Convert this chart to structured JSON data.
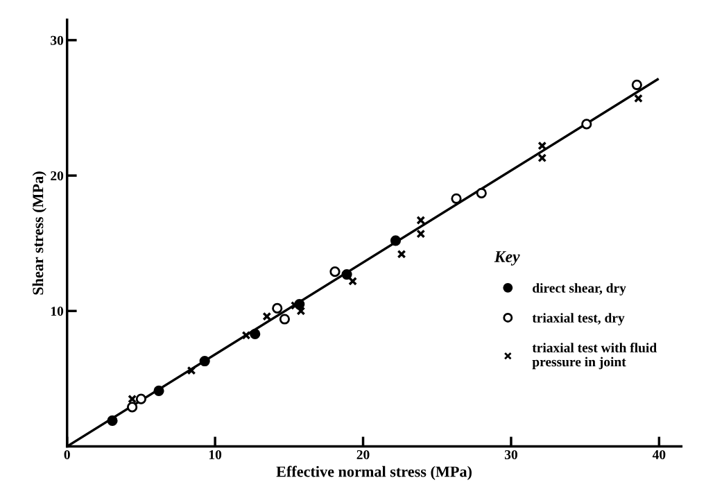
{
  "chart_data": {
    "type": "scatter",
    "xlabel": "Effective normal stress (MPa)",
    "ylabel": "Shear stress (MPa)",
    "legend_title": "Key",
    "legend": "right",
    "xlim": [
      0,
      41.5
    ],
    "ylim": [
      0,
      31.5
    ],
    "xticks": [
      0,
      10,
      20,
      30,
      40
    ],
    "yticks": [
      10,
      20,
      30
    ],
    "grid": false,
    "series": [
      {
        "name": "direct shear, dry",
        "color": "#000000",
        "marker": "circle",
        "x": [
          3.06,
          6.2,
          9.3,
          12.7,
          15.7,
          18.9,
          22.2
        ],
        "values": [
          1.9,
          4.1,
          6.3,
          8.3,
          10.5,
          12.7,
          15.2
        ]
      },
      {
        "name": "triaxial test, dry",
        "color": "#ffffff",
        "marker": "circle",
        "x": [
          4.4,
          5.0,
          14.2,
          14.7,
          18.1,
          26.3,
          28.0,
          35.1,
          38.5
        ],
        "values": [
          2.9,
          3.5,
          10.2,
          9.4,
          12.9,
          18.3,
          18.7,
          23.8,
          26.7
        ]
      },
      {
        "name": "triaxial test with fluid\npressure in joint",
        "color": "#000000",
        "marker": "cross",
        "x": [
          4.4,
          8.4,
          12.1,
          13.5,
          15.4,
          15.8,
          19.3,
          22.6,
          23.9,
          23.9,
          32.1,
          32.1,
          38.6
        ],
        "values": [
          3.5,
          5.6,
          8.2,
          9.6,
          10.4,
          10.0,
          12.2,
          14.2,
          16.7,
          15.7,
          22.2,
          21.3,
          25.7
        ]
      },
      {
        "type": "line",
        "color": "#000000",
        "line_style": "solid",
        "x": [
          0,
          39.9
        ],
        "values": [
          0,
          27.1
        ]
      }
    ]
  }
}
